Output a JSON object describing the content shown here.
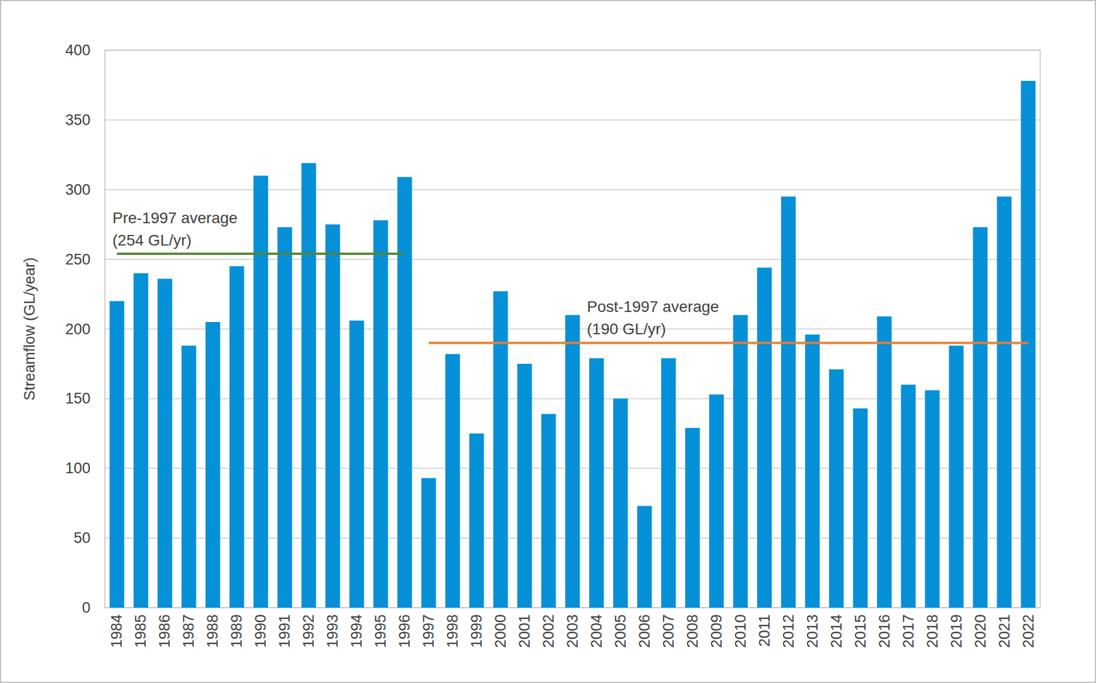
{
  "chart_data": {
    "type": "bar",
    "y_label": "Streamflow (GL/year)",
    "categories": [
      "1984",
      "1985",
      "1986",
      "1987",
      "1988",
      "1989",
      "1990",
      "1991",
      "1992",
      "1993",
      "1994",
      "1995",
      "1996",
      "1997",
      "1998",
      "1999",
      "2000",
      "2001",
      "2002",
      "2003",
      "2004",
      "2005",
      "2006",
      "2007",
      "2008",
      "2009",
      "2010",
      "2011",
      "2012",
      "2013",
      "2014",
      "2015",
      "2016",
      "2017",
      "2018",
      "2019",
      "2020",
      "2021",
      "2022"
    ],
    "values": [
      220,
      240,
      236,
      188,
      205,
      245,
      310,
      273,
      319,
      275,
      206,
      278,
      309,
      93,
      182,
      125,
      227,
      175,
      139,
      210,
      179,
      150,
      73,
      179,
      129,
      153,
      210,
      244,
      295,
      196,
      171,
      143,
      209,
      160,
      156,
      188,
      273,
      295,
      378
    ],
    "color": "#0590d8",
    "ylim": [
      0,
      400
    ],
    "yticks": [
      0,
      50,
      100,
      150,
      200,
      250,
      300,
      350,
      400
    ],
    "grid": true,
    "annotations": [
      {
        "text": "Pre-1997 average",
        "value_label": "(254 GL/yr)",
        "value": 254,
        "from": "1984",
        "to": "1996",
        "color": "#548235"
      },
      {
        "text": "Post-1997 average",
        "value_label": "(190 GL/yr)",
        "value": 190,
        "from": "1997",
        "to": "2022",
        "color": "#ed7d31"
      }
    ]
  }
}
